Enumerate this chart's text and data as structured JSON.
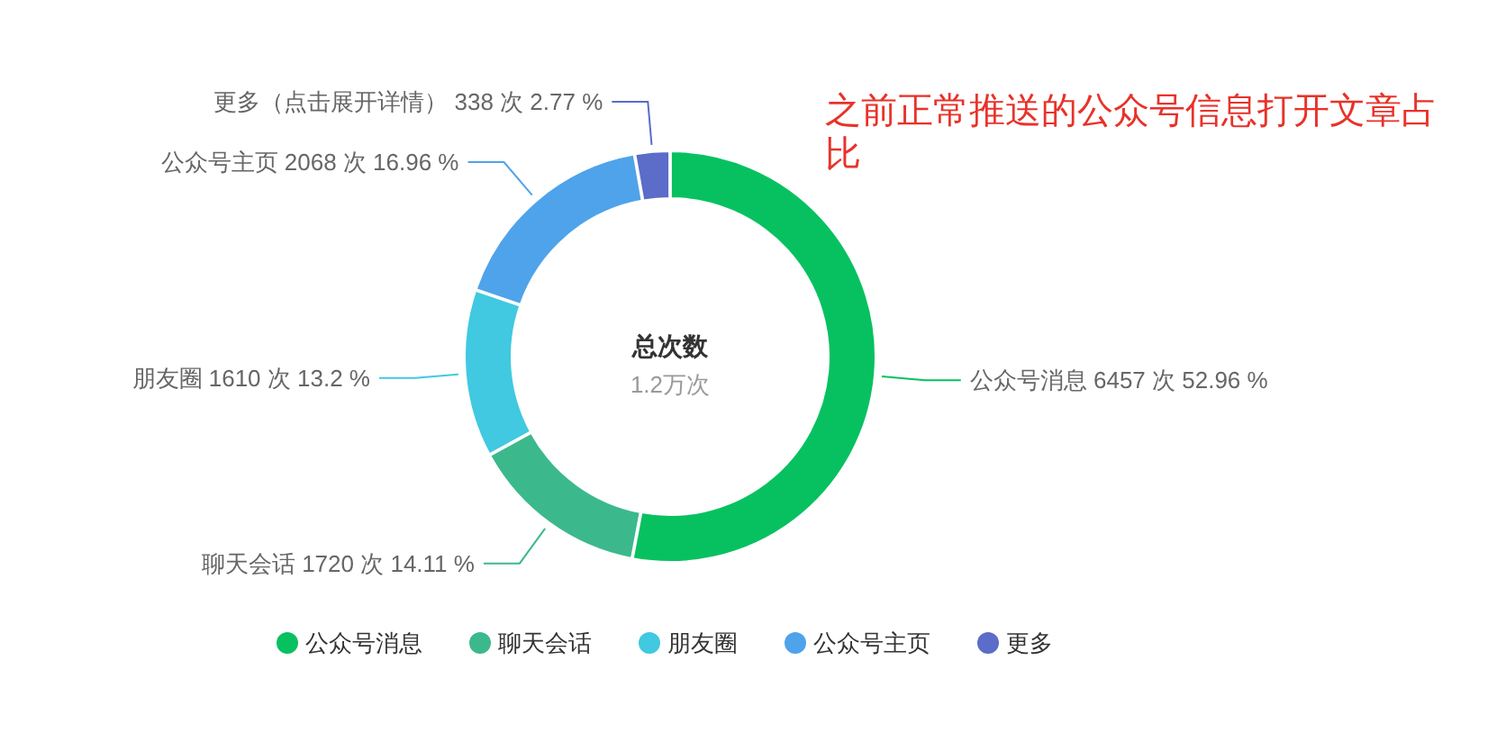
{
  "chart_data": {
    "type": "donut",
    "title": "总次数",
    "subtitle": "1.2万次",
    "categories": [
      "公众号消息",
      "聊天会话",
      "朋友圈",
      "公众号主页",
      "更多"
    ],
    "values": [
      6457,
      1720,
      1610,
      2068,
      338
    ],
    "colors": [
      "#07c160",
      "#3cb98c",
      "#40c9e0",
      "#4fa3ea",
      "#5b6cc9"
    ],
    "value_labels": [
      "公众号消息 6457 次 52.96 %",
      "聊天会话 1720 次 14.11 %",
      "朋友圈 1610 次 13.2 %",
      "公众号主页 2068 次 16.96 %",
      "更多（点击展开详情） 338 次 2.77 %"
    ],
    "annotations": [
      "之前正常推送的公众号信息打开文章占比"
    ],
    "legend": "bottom"
  }
}
